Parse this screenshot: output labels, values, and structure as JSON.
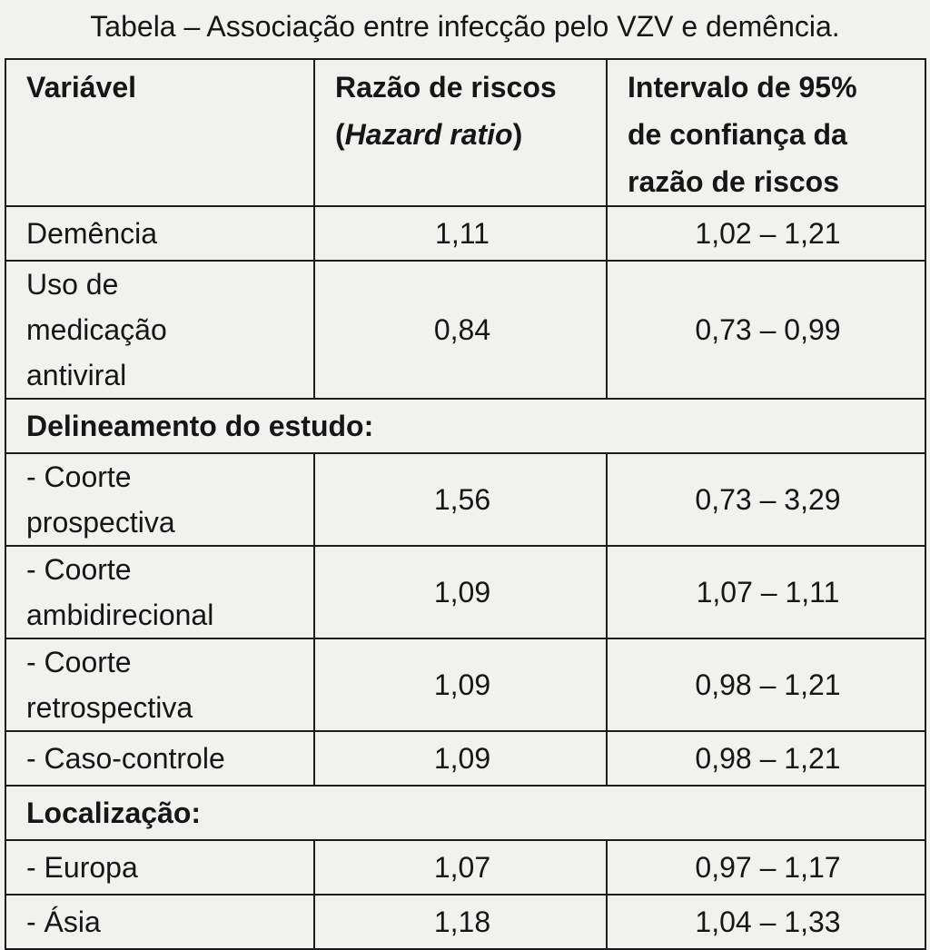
{
  "title": "Tabela – Associação entre infecção pelo VZV e demência.",
  "table": {
    "headers": {
      "variable": "Variável",
      "hr_line1": "Razão de riscos",
      "hr_open": "(",
      "hr_italic": "Hazard ratio",
      "hr_close": ")",
      "ci_line1": "Intervalo de 95%",
      "ci_line2": "de confiança da",
      "ci_line3": "razão de riscos"
    },
    "rows": [
      {
        "variable": "Demência",
        "hr": "1,11",
        "ci": "1,02 – 1,21"
      },
      {
        "variable_lines": [
          "Uso de",
          "medicação",
          "antiviral"
        ],
        "hr": "0,84",
        "ci": "0,73 – 0,99"
      },
      {
        "section": "Delineamento do estudo:"
      },
      {
        "variable_lines": [
          "- Coorte",
          "prospectiva"
        ],
        "hr": "1,56",
        "ci": "0,73 – 3,29"
      },
      {
        "variable_lines": [
          "- Coorte",
          "ambidirecional"
        ],
        "hr": "1,09",
        "ci": "1,07 – 1,11"
      },
      {
        "variable_lines": [
          "- Coorte",
          "retrospectiva"
        ],
        "hr": "1,09",
        "ci": "0,98 – 1,21"
      },
      {
        "variable": "- Caso-controle",
        "hr": "1,09",
        "ci": "0,98 – 1,21"
      },
      {
        "section": "Localização:"
      },
      {
        "variable": "- Europa",
        "hr": "1,07",
        "ci": "0,97 – 1,17"
      },
      {
        "variable": "- Ásia",
        "hr": "1,18",
        "ci": "1,04 – 1,33"
      }
    ]
  }
}
